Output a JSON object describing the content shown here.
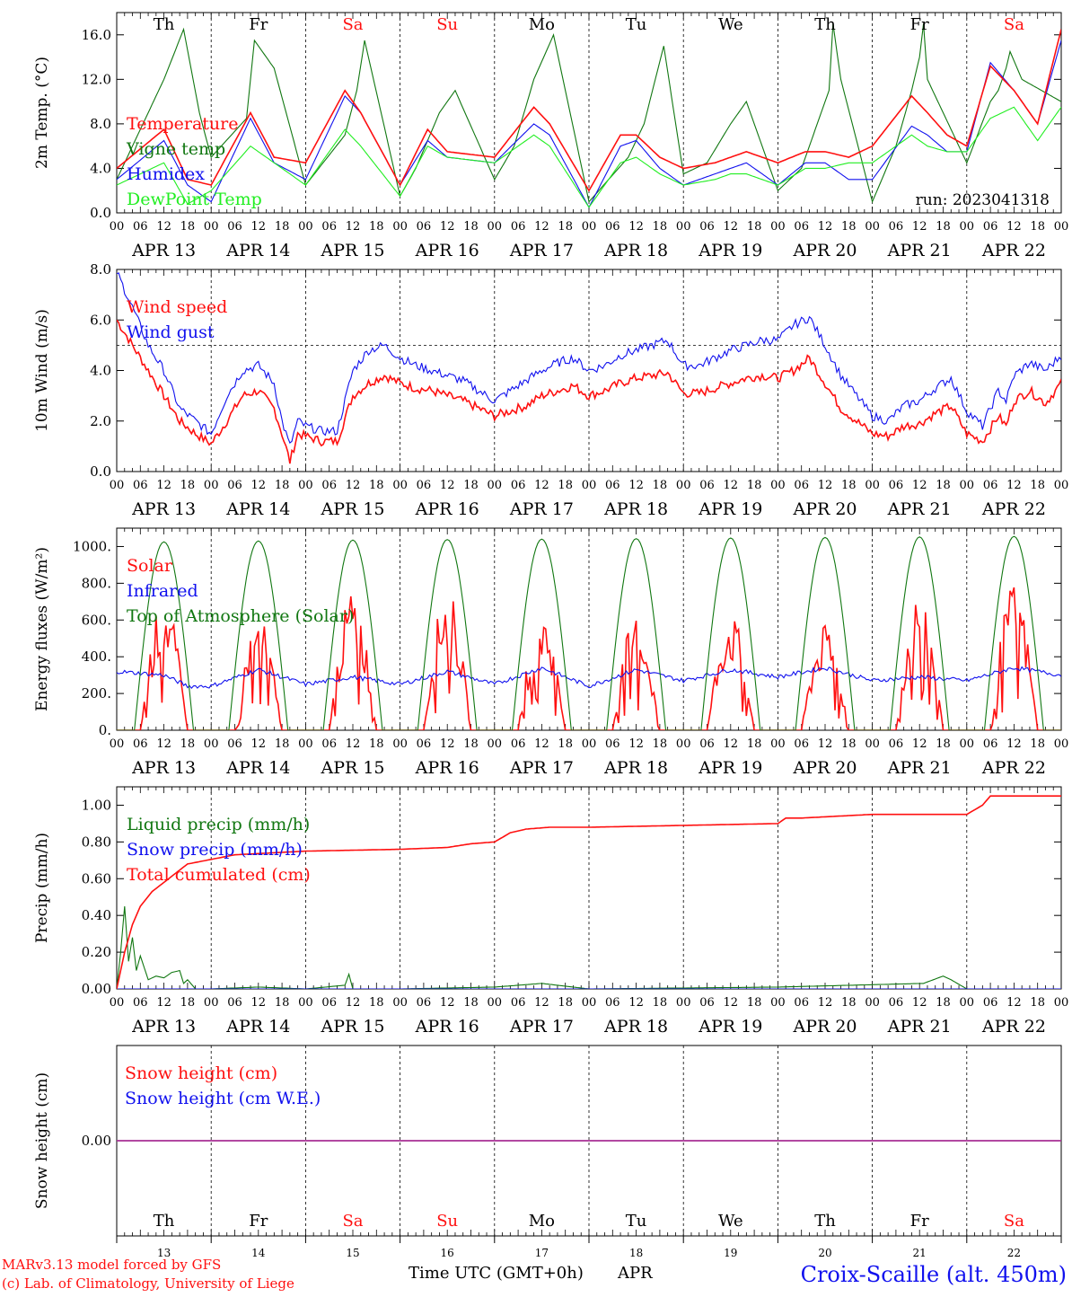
{
  "meta": {
    "model_credit": "MARv3.13 model forced by GFS",
    "copyright": "(c) Lab. of Climatology, University of Liege",
    "xlabel": "Time UTC (GMT+0h)",
    "month": "APR",
    "station": "Croix-Scaille (alt. 450m)"
  },
  "colors": {
    "red": "#ff1010",
    "green": "#117711",
    "blue": "#1010ee",
    "lightgreen": "#22ee22",
    "purple": "#9933aa",
    "axis": "#000000",
    "weekend": "#ff1010",
    "weekday": "#000000"
  },
  "days": [
    {
      "dow": "Th",
      "date_label": "APR 13",
      "num": "13",
      "weekend": false
    },
    {
      "dow": "Fr",
      "date_label": "APR 14",
      "num": "14",
      "weekend": false
    },
    {
      "dow": "Sa",
      "date_label": "APR 15",
      "num": "15",
      "weekend": true
    },
    {
      "dow": "Su",
      "date_label": "APR 16",
      "num": "16",
      "weekend": true
    },
    {
      "dow": "Mo",
      "date_label": "APR 17",
      "num": "17",
      "weekend": false
    },
    {
      "dow": "Tu",
      "date_label": "APR 18",
      "num": "18",
      "weekend": false
    },
    {
      "dow": "We",
      "date_label": "APR 19",
      "num": "19",
      "weekend": false
    },
    {
      "dow": "Th",
      "date_label": "APR 20",
      "num": "20",
      "weekend": false
    },
    {
      "dow": "Fr",
      "date_label": "APR 21",
      "num": "21",
      "weekend": false
    },
    {
      "dow": "Sa",
      "date_label": "APR 22",
      "num": "22",
      "weekend": true
    }
  ],
  "hour_ticks": [
    "00",
    "06",
    "12",
    "18"
  ],
  "last_hour_tick": "00",
  "chart_data": [
    {
      "type": "line",
      "id": "temp",
      "ylabel": "2m Temp. (°C)",
      "ylim": [
        0,
        18
      ],
      "yticks": [
        0,
        4,
        8,
        12,
        16
      ],
      "ytick_labels": [
        "0.0",
        "4.0",
        "8.0",
        "12.0",
        "16.0"
      ],
      "annotation": "run: 2023041318",
      "series": [
        {
          "name": "Vigne temp",
          "color": "green",
          "x": [
            0,
            12,
            17,
            21,
            24,
            33,
            35,
            40,
            48,
            58,
            61,
            63,
            72,
            76,
            82,
            86,
            96,
            101,
            106,
            111,
            120,
            130,
            134,
            139,
            144,
            150,
            156,
            160,
            168,
            174,
            178,
            181,
            182,
            184,
            192,
            198,
            202,
            204,
            205,
            206,
            216,
            222,
            224,
            226,
            227,
            230,
            240
          ],
          "y": [
            3,
            12,
            16.5,
            9,
            5,
            8.5,
            15.5,
            13,
            2.5,
            7,
            11,
            15.5,
            1.5,
            4,
            9,
            11,
            3,
            6,
            12,
            16,
            1,
            5,
            8,
            15,
            3.5,
            4.5,
            8,
            10,
            2,
            4,
            8,
            11,
            17,
            12,
            1,
            6,
            11,
            14,
            17,
            12,
            4.5,
            10,
            11,
            13,
            14.5,
            12,
            10
          ]
        },
        {
          "name": "Humidex",
          "color": "blue",
          "x": [
            0,
            12,
            18,
            24,
            34,
            40,
            48,
            58,
            62,
            72,
            79,
            84,
            96,
            106,
            110,
            120,
            128,
            132,
            138,
            144,
            152,
            156,
            160,
            168,
            175,
            180,
            186,
            192,
            202,
            206,
            211,
            216,
            222,
            228,
            234,
            240
          ],
          "y": [
            3,
            6.5,
            2.5,
            1,
            8.5,
            4.5,
            3,
            10.5,
            9,
            2.5,
            6.5,
            5,
            4.5,
            8,
            7,
            0.5,
            6,
            6.5,
            4,
            2.5,
            3.5,
            4,
            4.5,
            2.5,
            4.5,
            4.5,
            3,
            3,
            7.8,
            7,
            5.5,
            5.5,
            13.5,
            11,
            8,
            15.5
          ]
        },
        {
          "name": "Temperature",
          "color": "red",
          "x": [
            0,
            12,
            18,
            24,
            34,
            40,
            48,
            58,
            62,
            72,
            79,
            84,
            96,
            106,
            110,
            120,
            128,
            132,
            138,
            144,
            152,
            156,
            160,
            168,
            175,
            180,
            186,
            192,
            202,
            206,
            211,
            216,
            222,
            228,
            234,
            240
          ],
          "y": [
            4,
            7.5,
            3,
            2.5,
            9,
            5,
            4.5,
            11,
            9,
            2.5,
            7.5,
            5.5,
            5,
            9.5,
            8,
            2,
            7,
            7,
            5,
            4,
            4.5,
            5,
            5.5,
            4.5,
            5.5,
            5.5,
            5,
            6,
            10.5,
            9,
            7,
            6,
            13.2,
            11,
            8,
            16.5
          ]
        },
        {
          "name": "DewPoint Temp",
          "color": "lightgreen",
          "x": [
            0,
            12,
            18,
            24,
            34,
            40,
            48,
            58,
            62,
            72,
            79,
            84,
            96,
            106,
            110,
            120,
            128,
            132,
            138,
            144,
            152,
            156,
            160,
            168,
            175,
            180,
            186,
            192,
            202,
            206,
            211,
            216,
            222,
            228,
            234,
            240
          ],
          "y": [
            2.5,
            4.5,
            0.8,
            2,
            6,
            4.5,
            2.5,
            7.5,
            6,
            1.5,
            6,
            5,
            4.5,
            7,
            6,
            0.5,
            4.5,
            5,
            3.5,
            2.5,
            3,
            3.5,
            3.5,
            2.5,
            4,
            4,
            4.5,
            4.5,
            7,
            6,
            5.5,
            5.5,
            8.5,
            9.5,
            6.5,
            9.5
          ]
        }
      ]
    },
    {
      "type": "line",
      "id": "wind",
      "ylabel": "10m Wind (m/s)",
      "ylim": [
        0,
        8
      ],
      "yticks": [
        0,
        2,
        4,
        6,
        8
      ],
      "ytick_labels": [
        "0.0",
        "2.0",
        "4.0",
        "6.0",
        "8.0"
      ],
      "reference_line": 5,
      "series": [
        {
          "name": "Wind speed",
          "color": "red",
          "x": [
            0,
            4,
            8,
            12,
            16,
            20,
            24,
            28,
            32,
            36,
            40,
            42,
            44,
            46,
            48,
            52,
            56,
            60,
            64,
            68,
            72,
            76,
            80,
            84,
            88,
            92,
            96,
            100,
            104,
            108,
            112,
            116,
            120,
            124,
            128,
            132,
            136,
            140,
            144,
            148,
            152,
            156,
            160,
            164,
            168,
            172,
            176,
            180,
            184,
            188,
            192,
            196,
            200,
            204,
            208,
            212,
            216,
            220,
            224,
            226,
            228,
            232,
            236,
            240
          ],
          "y": [
            6,
            5,
            4,
            3,
            2,
            1.5,
            1.1,
            2,
            3,
            3.2,
            2.5,
            1.5,
            0.4,
            1.5,
            1.4,
            1.2,
            1.2,
            3,
            3.5,
            3.8,
            3.5,
            3.3,
            3.2,
            3,
            2.8,
            2.5,
            2.2,
            2.4,
            2.6,
            3,
            3.2,
            3.4,
            3,
            3.2,
            3.5,
            3.7,
            3.8,
            3.9,
            3.1,
            3.1,
            3.3,
            3.5,
            3.7,
            3.8,
            3.7,
            4,
            4.5,
            3.5,
            2.5,
            2,
            1.5,
            1.4,
            1.8,
            1.9,
            2.3,
            2.6,
            1.5,
            1.2,
            2.2,
            1.8,
            2.8,
            3.2,
            2.7,
            3.5
          ]
        },
        {
          "name": "Wind gust",
          "color": "blue",
          "x": [
            0,
            4,
            8,
            12,
            16,
            20,
            24,
            28,
            32,
            36,
            40,
            42,
            44,
            46,
            48,
            52,
            56,
            60,
            64,
            68,
            72,
            76,
            80,
            84,
            88,
            92,
            96,
            100,
            104,
            108,
            112,
            116,
            120,
            124,
            128,
            132,
            136,
            140,
            144,
            148,
            152,
            156,
            160,
            164,
            168,
            172,
            176,
            180,
            184,
            188,
            192,
            196,
            200,
            204,
            208,
            212,
            216,
            220,
            224,
            226,
            228,
            232,
            236,
            240
          ],
          "y": [
            7.9,
            6.5,
            5,
            4,
            2.5,
            2,
            1.5,
            3,
            4,
            4.2,
            3.5,
            2,
            1,
            2,
            1.8,
            1.6,
            1.6,
            4,
            4.8,
            5,
            4.5,
            4.2,
            4,
            3.8,
            3.6,
            3.2,
            2.8,
            3.2,
            3.6,
            4,
            4.3,
            4.5,
            4,
            4.2,
            4.6,
            4.8,
            5,
            5.2,
            4.2,
            4.2,
            4.5,
            4.8,
            5,
            5.2,
            5.2,
            5.8,
            6.1,
            5,
            3.8,
            3,
            2.2,
            2,
            2.6,
            2.8,
            3.3,
            3.7,
            2.4,
            1.8,
            3.2,
            2.8,
            3.8,
            4.3,
            4,
            4.6
          ]
        }
      ]
    },
    {
      "type": "line",
      "id": "energy",
      "ylabel": "Energy fluxes (W/m²)",
      "ylim": [
        0,
        1100
      ],
      "yticks": [
        0,
        200,
        400,
        600,
        800,
        1000
      ],
      "ytick_labels": [
        "0.",
        "200.",
        "400.",
        "600.",
        "800.",
        "1000."
      ],
      "series": [
        {
          "name": "Solar",
          "color": "red",
          "daily_peaks": [
            730,
            620,
            760,
            770,
            650,
            630,
            640,
            570,
            760,
            800
          ]
        },
        {
          "name": "Infrared",
          "color": "blue",
          "x": [
            0,
            12,
            18,
            24,
            36,
            48,
            60,
            72,
            84,
            96,
            108,
            120,
            132,
            144,
            156,
            168,
            180,
            192,
            204,
            216,
            228,
            240
          ],
          "y": [
            320,
            300,
            240,
            240,
            330,
            250,
            290,
            250,
            320,
            250,
            340,
            240,
            330,
            270,
            330,
            290,
            340,
            270,
            290,
            270,
            340,
            300
          ]
        },
        {
          "name": "Top of Atmosphere (Solar)",
          "color": "green",
          "daily_peaks": [
            1025,
            1030,
            1035,
            1038,
            1040,
            1043,
            1046,
            1049,
            1052,
            1055
          ]
        }
      ]
    },
    {
      "type": "line",
      "id": "precip",
      "ylabel": "Precip (mm/h)",
      "ylim": [
        0,
        1.1
      ],
      "yticks": [
        0,
        0.2,
        0.4,
        0.6,
        0.8,
        1.0
      ],
      "ytick_labels": [
        "0.00",
        "0.20",
        "0.40",
        "0.60",
        "0.80",
        "1.00"
      ],
      "series": [
        {
          "name": "Liquid precip (mm/h)",
          "color": "green",
          "x": [
            0,
            1,
            2,
            3,
            4,
            5,
            6,
            8,
            10,
            12,
            14,
            16,
            17,
            18,
            20,
            24,
            36,
            48,
            58,
            59,
            60,
            72,
            96,
            108,
            120,
            168,
            205,
            210,
            212,
            216,
            240
          ],
          "y": [
            0,
            0.2,
            0.45,
            0.15,
            0.28,
            0.1,
            0.18,
            0.05,
            0.07,
            0.06,
            0.09,
            0.1,
            0.03,
            0.05,
            0,
            0,
            0.01,
            0,
            0.02,
            0.08,
            0,
            0,
            0.01,
            0.03,
            0,
            0.01,
            0.03,
            0.07,
            0.05,
            0,
            0
          ]
        },
        {
          "name": "Snow precip (mm/h)",
          "color": "blue",
          "x": [
            0,
            240
          ],
          "y": [
            0,
            0
          ]
        },
        {
          "name": "Total cumulated (cm)",
          "color": "red",
          "x": [
            0,
            2,
            4,
            6,
            9,
            12,
            18,
            30,
            48,
            72,
            84,
            90,
            96,
            100,
            104,
            110,
            120,
            144,
            168,
            170,
            174,
            192,
            216,
            220,
            222,
            240
          ],
          "y": [
            0,
            0.2,
            0.35,
            0.45,
            0.53,
            0.58,
            0.68,
            0.73,
            0.75,
            0.76,
            0.77,
            0.79,
            0.8,
            0.85,
            0.87,
            0.88,
            0.88,
            0.89,
            0.9,
            0.93,
            0.93,
            0.95,
            0.95,
            1.0,
            1.05,
            1.05
          ]
        }
      ]
    },
    {
      "type": "line",
      "id": "snow",
      "ylabel": "Snow height (cm)",
      "ylim": [
        -1,
        1
      ],
      "yticks": [
        0
      ],
      "ytick_labels": [
        "0.00"
      ],
      "series": [
        {
          "name": "Snow height (cm)",
          "color": "red",
          "x": [
            0,
            240
          ],
          "y": [
            0,
            0
          ]
        },
        {
          "name": "Snow height (cm W.E.)",
          "color": "blue",
          "x": [
            0,
            240
          ],
          "y": [
            0,
            0
          ]
        },
        {
          "name": "",
          "color": "purple",
          "x": [
            0,
            240
          ],
          "y": [
            0,
            0
          ]
        }
      ]
    }
  ]
}
